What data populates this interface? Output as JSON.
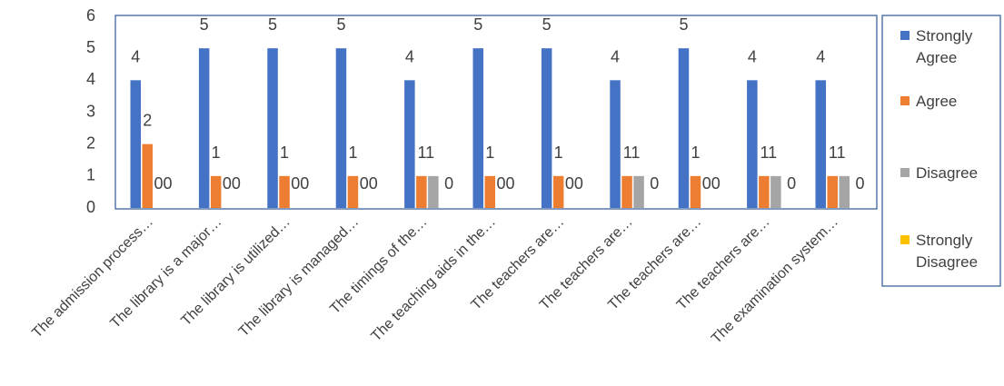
{
  "chart_data": {
    "type": "bar",
    "categories": [
      "The admission process…",
      "The library is a major…",
      "The library is utilized…",
      "The library is managed…",
      "The timings of the…",
      "The teaching aids in the…",
      "The teachers are…",
      "The teachers are…",
      "The teachers are…",
      "The teachers are…",
      "The examination system…"
    ],
    "series": [
      {
        "name": "Strongly Agree",
        "color": "#4472C4",
        "values": [
          4,
          5,
          5,
          5,
          4,
          5,
          5,
          4,
          5,
          4,
          4
        ]
      },
      {
        "name": "Agree",
        "color": "#ED7D31",
        "values": [
          2,
          1,
          1,
          1,
          1,
          1,
          1,
          1,
          1,
          1,
          1
        ]
      },
      {
        "name": "Disagree",
        "color": "#A5A5A5",
        "values": [
          0,
          0,
          0,
          0,
          1,
          0,
          0,
          1,
          0,
          1,
          1
        ]
      },
      {
        "name": "Strongly Disagree",
        "color": "#FFC000",
        "values": [
          0,
          0,
          0,
          0,
          0,
          0,
          0,
          0,
          0,
          0,
          0
        ]
      }
    ],
    "y_tick_labels": [
      "0",
      "1",
      "2",
      "3",
      "4",
      "5",
      "6"
    ],
    "ylim": [
      0,
      6
    ],
    "grid": false,
    "legend_position": "right",
    "legend_labels": [
      [
        "Strongly",
        "Agree"
      ],
      [
        "Agree"
      ],
      [
        "Disagree"
      ],
      [
        "Strongly",
        "Disagree"
      ]
    ],
    "data_labels": [
      [
        "4",
        "2",
        "00"
      ],
      [
        "5",
        "1",
        "00"
      ],
      [
        "5",
        "1",
        "00"
      ],
      [
        "5",
        "1",
        "00"
      ],
      [
        "4",
        "11",
        "0"
      ],
      [
        "5",
        "1",
        "00"
      ],
      [
        "5",
        "1",
        "00"
      ],
      [
        "4",
        "11",
        "0"
      ],
      [
        "5",
        "1",
        "00"
      ],
      [
        "4",
        "11",
        "0"
      ],
      [
        "4",
        "11",
        "0"
      ]
    ]
  }
}
